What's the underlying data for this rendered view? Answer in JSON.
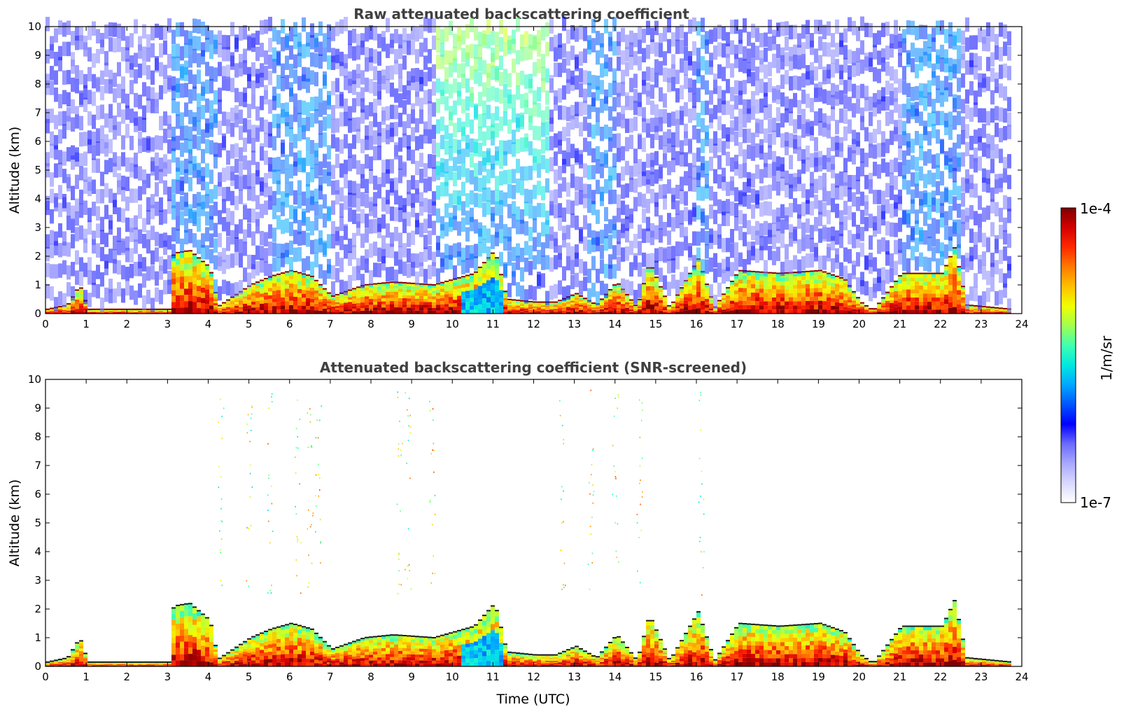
{
  "chart_data": [
    {
      "type": "heatmap",
      "title": "Raw attenuated backscattering coefficient",
      "xlabel": "",
      "ylabel": "Altitude (km)",
      "xlim": [
        0,
        24
      ],
      "ylim": [
        0,
        10
      ],
      "xticks": [
        "0",
        "1",
        "2",
        "3",
        "4",
        "5",
        "6",
        "7",
        "8",
        "9",
        "10",
        "11",
        "12",
        "13",
        "14",
        "15",
        "16",
        "17",
        "18",
        "19",
        "20",
        "21",
        "22",
        "23",
        "24"
      ],
      "yticks": [
        "0",
        "1",
        "2",
        "3",
        "4",
        "5",
        "6",
        "7",
        "8",
        "9",
        "10"
      ],
      "data_end_hour": 23.7,
      "boundary_layer_top_km": [
        [
          0,
          0.15
        ],
        [
          0.5,
          0.3
        ],
        [
          0.8,
          1.0
        ],
        [
          1.0,
          0.15
        ],
        [
          3.0,
          0.15
        ],
        [
          3.1,
          2.1
        ],
        [
          3.5,
          2.2
        ],
        [
          4.0,
          1.6
        ],
        [
          4.2,
          0.25
        ],
        [
          5.0,
          1.0
        ],
        [
          5.5,
          1.3
        ],
        [
          6.0,
          1.5
        ],
        [
          6.5,
          1.3
        ],
        [
          7.0,
          0.6
        ],
        [
          7.8,
          1.0
        ],
        [
          8.5,
          1.1
        ],
        [
          9.5,
          1.0
        ],
        [
          10.0,
          1.2
        ],
        [
          10.5,
          1.4
        ],
        [
          11.0,
          2.2
        ],
        [
          11.3,
          0.5
        ],
        [
          12.0,
          0.4
        ],
        [
          12.5,
          0.4
        ],
        [
          13.0,
          0.7
        ],
        [
          13.5,
          0.3
        ],
        [
          14.0,
          1.1
        ],
        [
          14.5,
          0.2
        ],
        [
          14.8,
          1.8
        ],
        [
          15.3,
          0.2
        ],
        [
          16.0,
          1.9
        ],
        [
          16.4,
          0.2
        ],
        [
          17.0,
          1.5
        ],
        [
          18.0,
          1.4
        ],
        [
          19.0,
          1.5
        ],
        [
          19.6,
          1.2
        ],
        [
          20.0,
          0.4
        ],
        [
          20.3,
          0.1
        ],
        [
          21.0,
          1.4
        ],
        [
          21.5,
          1.4
        ],
        [
          22.0,
          1.4
        ],
        [
          22.3,
          2.3
        ],
        [
          22.6,
          0.3
        ],
        [
          23.7,
          0.15
        ]
      ],
      "high_signal_periods_hours": [
        [
          3.0,
          4.2
        ],
        [
          5.5,
          7.0
        ],
        [
          9.5,
          12.3
        ],
        [
          13.3,
          14.0
        ],
        [
          16.0,
          16.3
        ],
        [
          21.0,
          22.5
        ]
      ]
    },
    {
      "type": "heatmap",
      "title": "Attenuated backscattering coefficient (SNR-screened)",
      "xlabel": "Time (UTC)",
      "ylabel": "Altitude (km)",
      "xlim": [
        0,
        24
      ],
      "ylim": [
        0,
        10
      ],
      "xticks": [
        "0",
        "1",
        "2",
        "3",
        "4",
        "5",
        "6",
        "7",
        "8",
        "9",
        "10",
        "11",
        "12",
        "13",
        "14",
        "15",
        "16",
        "17",
        "18",
        "19",
        "20",
        "21",
        "22",
        "23",
        "24"
      ],
      "yticks": [
        "0",
        "1",
        "2",
        "3",
        "4",
        "5",
        "6",
        "7",
        "8",
        "9",
        "10"
      ],
      "data_end_hour": 23.7,
      "sparse_high_altitude_echo_hours": [
        4.3,
        5.0,
        5.5,
        6.2,
        6.5,
        6.7,
        8.7,
        8.9,
        9.5,
        12.7,
        13.4,
        14.0,
        14.6,
        16.1
      ]
    }
  ],
  "colorbar": {
    "label": "1/m/sr",
    "max_label": "1e-4",
    "min_label": "1e-7",
    "scale": "log",
    "colormap": [
      "#ffffff",
      "#d8d8ff",
      "#a8a8ff",
      "#6a6aff",
      "#0000ff",
      "#0055ff",
      "#00a8ff",
      "#00e8e0",
      "#40ffb0",
      "#a0ff50",
      "#f0ff00",
      "#ffc000",
      "#ff7a00",
      "#ff2800",
      "#d40000",
      "#800000"
    ]
  }
}
